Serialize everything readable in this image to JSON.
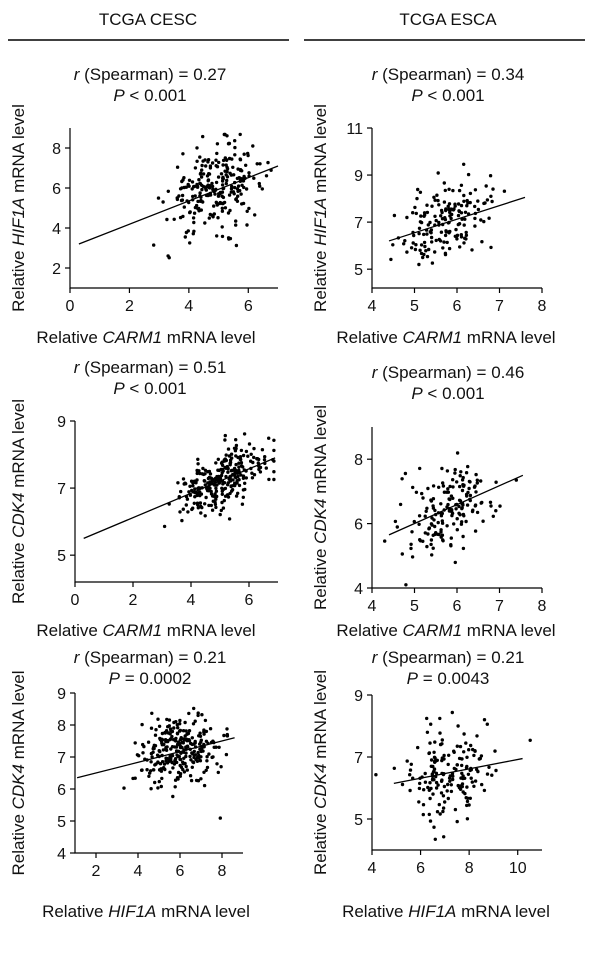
{
  "columns": [
    "TCGA CESC",
    "TCGA ESCA"
  ],
  "chart_data": [
    {
      "type": "scatter",
      "column": "TCGA CESC",
      "stat_r": "0.27",
      "stat_p": "< 0.001",
      "xlabel_pre": "Relative ",
      "xlabel_gene": "CARM1",
      "xlabel_post": " mRNA level",
      "ylabel_pre": "Relative ",
      "ylabel_gene": "HIF1A",
      "ylabel_post": " mRNA level",
      "xlim": [
        0,
        7
      ],
      "ylim": [
        1,
        9
      ],
      "xticks": [
        0,
        2,
        4,
        6
      ],
      "yticks": [
        2,
        4,
        6,
        8
      ],
      "n_points": 260,
      "center": [
        4.9,
        6.0
      ],
      "spread": [
        0.8,
        1.05
      ],
      "corr": 0.3,
      "trend": [
        [
          0.3,
          3.2
        ],
        [
          7.0,
          7.1
        ]
      ]
    },
    {
      "type": "scatter",
      "column": "TCGA ESCA",
      "stat_r": "0.34",
      "stat_p": "< 0.001",
      "xlabel_pre": "Relative ",
      "xlabel_gene": "CARM1",
      "xlabel_post": " mRNA level",
      "ylabel_pre": "Relative ",
      "ylabel_gene": "HIF1A",
      "ylabel_post": " mRNA level",
      "xlim": [
        4,
        8
      ],
      "ylim": [
        4.2,
        11
      ],
      "xticks": [
        4,
        5,
        6,
        7,
        8
      ],
      "yticks": [
        5,
        7,
        9,
        11
      ],
      "n_points": 170,
      "center": [
        5.8,
        7.0
      ],
      "spread": [
        0.55,
        0.9
      ],
      "corr": 0.35,
      "trend": [
        [
          4.4,
          6.2
        ],
        [
          7.6,
          8.05
        ]
      ]
    },
    {
      "type": "scatter",
      "column": "TCGA CESC",
      "stat_r": "0.51",
      "stat_p": "< 0.001",
      "xlabel_pre": "Relative ",
      "xlabel_gene": "CARM1",
      "xlabel_post": " mRNA level",
      "ylabel_pre": "Relative ",
      "ylabel_gene": "CDK4",
      "ylabel_post": " mRNA level",
      "xlim": [
        0,
        7
      ],
      "ylim": [
        4.2,
        9
      ],
      "xticks": [
        0,
        2,
        4,
        6
      ],
      "yticks": [
        5,
        7,
        9
      ],
      "n_points": 280,
      "center": [
        5.0,
        7.2
      ],
      "spread": [
        0.75,
        0.5
      ],
      "corr": 0.5,
      "trend": [
        [
          0.3,
          5.5
        ],
        [
          6.9,
          7.9
        ]
      ]
    },
    {
      "type": "scatter",
      "column": "TCGA ESCA",
      "stat_r": "0.46",
      "stat_p": "< 0.001",
      "xlabel_pre": "Relative ",
      "xlabel_gene": "CARM1",
      "xlabel_post": " mRNA level",
      "ylabel_pre": "Relative ",
      "ylabel_gene": "CDK4",
      "ylabel_post": " mRNA level",
      "xlim": [
        4,
        8
      ],
      "ylim": [
        4,
        9
      ],
      "xticks": [
        4,
        5,
        6,
        7,
        8
      ],
      "yticks": [
        4,
        6,
        8
      ],
      "n_points": 170,
      "center": [
        5.8,
        6.4
      ],
      "spread": [
        0.55,
        0.75
      ],
      "corr": 0.45,
      "trend": [
        [
          4.4,
          5.65
        ],
        [
          7.55,
          7.5
        ]
      ]
    },
    {
      "type": "scatter",
      "column": "TCGA CESC",
      "stat_r": "0.21",
      "stat_p": "= 0.0002",
      "xlabel_pre": "Relative ",
      "xlabel_gene": "HIF1A",
      "xlabel_post": " mRNA level",
      "ylabel_pre": "Relative ",
      "ylabel_gene": "CDK4",
      "ylabel_post": " mRNA level",
      "xlim": [
        1,
        9
      ],
      "ylim": [
        4,
        9
      ],
      "xticks": [
        2,
        4,
        6,
        8
      ],
      "yticks": [
        4,
        5,
        6,
        7,
        8,
        9
      ],
      "n_points": 280,
      "center": [
        6.0,
        7.2
      ],
      "spread": [
        1.0,
        0.55
      ],
      "corr": 0.25,
      "trend": [
        [
          1.1,
          6.35
        ],
        [
          8.6,
          7.6
        ]
      ]
    },
    {
      "type": "scatter",
      "column": "TCGA ESCA",
      "stat_r": "0.21",
      "stat_p": "= 0.0043",
      "xlabel_pre": "Relative ",
      "xlabel_gene": "HIF1A",
      "xlabel_post": " mRNA level",
      "ylabel_pre": "Relative ",
      "ylabel_gene": "CDK4",
      "ylabel_post": " mRNA level",
      "xlim": [
        4,
        11
      ],
      "ylim": [
        4,
        9
      ],
      "xticks": [
        4,
        6,
        8,
        10
      ],
      "yticks": [
        5,
        7,
        9
      ],
      "n_points": 170,
      "center": [
        7.1,
        6.5
      ],
      "spread": [
        0.9,
        0.75
      ],
      "corr": 0.22,
      "trend": [
        [
          4.9,
          6.15
        ],
        [
          10.2,
          6.95
        ]
      ]
    }
  ]
}
